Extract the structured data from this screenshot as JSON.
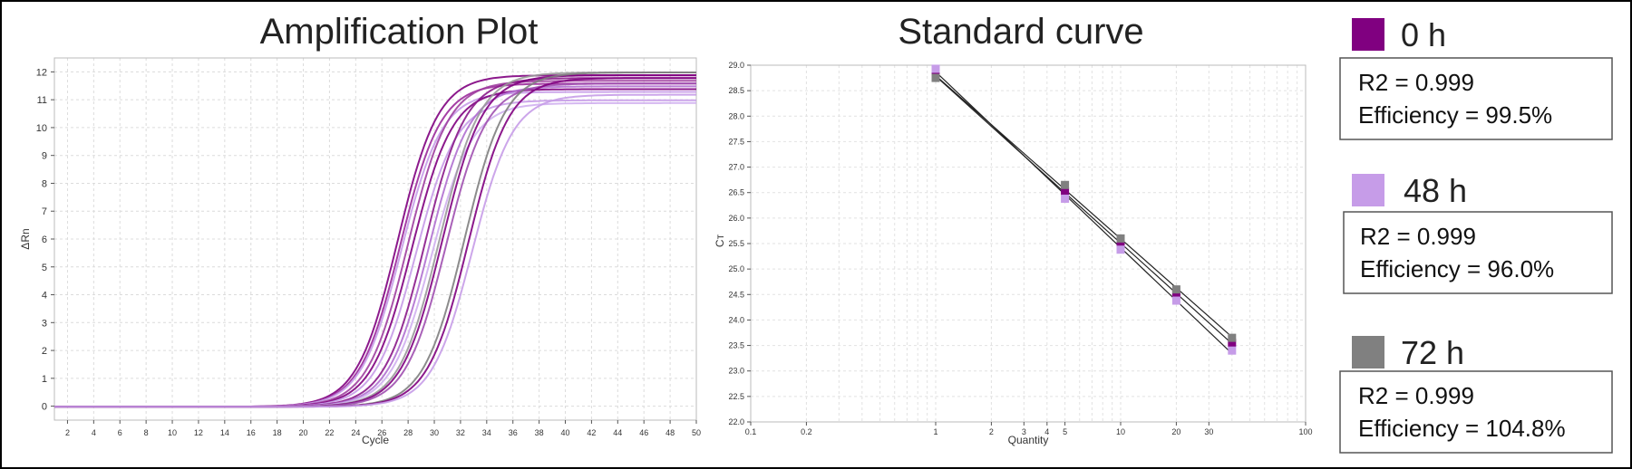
{
  "chart_data": [
    {
      "type": "line",
      "title": "Amplification Plot",
      "xlabel": "Cycle",
      "ylabel": "ΔRn",
      "xlim": [
        1,
        50
      ],
      "ylim": [
        -0.5,
        12.5
      ],
      "xticks": [
        2,
        4,
        6,
        8,
        10,
        12,
        14,
        16,
        18,
        20,
        22,
        24,
        26,
        28,
        30,
        32,
        34,
        36,
        38,
        40,
        42,
        44,
        46,
        48,
        50
      ],
      "yticks": [
        0,
        1,
        2,
        3,
        4,
        5,
        6,
        7,
        8,
        9,
        10,
        11,
        12
      ],
      "grid": true,
      "series": [
        {
          "color": "#800080",
          "midpoint": 27.2,
          "plateau": 11.9
        },
        {
          "color": "#9b2a9b",
          "midpoint": 27.4,
          "plateau": 11.6
        },
        {
          "color": "#c69ce8",
          "midpoint": 27.5,
          "plateau": 11.3
        },
        {
          "color": "#a040a0",
          "midpoint": 28.0,
          "plateau": 11.7
        },
        {
          "color": "#800080",
          "midpoint": 28.3,
          "plateau": 11.4
        },
        {
          "color": "#c69ce8",
          "midpoint": 28.6,
          "plateau": 11.0
        },
        {
          "color": "#8a1a8a",
          "midpoint": 29.3,
          "plateau": 11.8
        },
        {
          "color": "#b070d0",
          "midpoint": 29.6,
          "plateau": 11.5
        },
        {
          "color": "#d0b0f0",
          "midpoint": 29.8,
          "plateau": 10.9
        },
        {
          "color": "#9a9a9a",
          "midpoint": 30.4,
          "plateau": 12.0
        },
        {
          "color": "#800080",
          "midpoint": 30.6,
          "plateau": 11.9
        },
        {
          "color": "#a050b0",
          "midpoint": 30.9,
          "plateau": 11.6
        },
        {
          "color": "#808080",
          "midpoint": 32.3,
          "plateau": 12.0
        },
        {
          "color": "#800080",
          "midpoint": 32.6,
          "plateau": 11.8
        },
        {
          "color": "#c69ce8",
          "midpoint": 32.9,
          "plateau": 11.2
        }
      ]
    },
    {
      "type": "scatter",
      "title": "Standard curve",
      "xlabel": "Quantity",
      "ylabel": "Cт",
      "xscale": "log",
      "xlim": [
        0.1,
        100
      ],
      "ylim": [
        22.0,
        29.0
      ],
      "xticks": [
        0.1,
        0.2,
        1,
        2,
        3,
        4,
        5,
        10,
        20,
        30,
        100
      ],
      "xticklabels": [
        "0.1",
        "0.2",
        "1",
        "2",
        "3",
        "4",
        "5",
        "10",
        "20",
        "30",
        "100"
      ],
      "yticks": [
        22.0,
        22.5,
        23.0,
        23.5,
        24.0,
        24.5,
        25.0,
        25.5,
        26.0,
        26.5,
        27.0,
        27.5,
        28.0,
        28.5,
        29.0
      ],
      "yticklabels": [
        "22.0",
        "22.5",
        "23.0",
        "23.5",
        "24.0",
        "24.5",
        "25.0",
        "25.5",
        "26.0",
        "26.5",
        "27.0",
        "27.5",
        "28.0",
        "28.5",
        "29.0"
      ],
      "grid": true,
      "x": [
        1,
        5,
        10,
        20,
        40
      ],
      "series": [
        {
          "name": "0 h",
          "color": "#800080",
          "values": [
            28.78,
            26.52,
            25.5,
            24.5,
            23.55
          ]
        },
        {
          "name": "48 h",
          "color": "#c69ce8",
          "values": [
            28.93,
            26.38,
            25.38,
            24.38,
            23.4
          ]
        },
        {
          "name": "72 h",
          "color": "#808080",
          "values": [
            28.75,
            26.65,
            25.6,
            24.6,
            23.65
          ]
        }
      ]
    }
  ],
  "legend": [
    {
      "label": "0 h",
      "color": "#800080",
      "r2": "R2 = 0.999",
      "efficiency": "Efficiency = 99.5%"
    },
    {
      "label": "48 h",
      "color": "#c69ce8",
      "r2": "R2 = 0.999",
      "efficiency": "Efficiency = 96.0%"
    },
    {
      "label": "72 h",
      "color": "#808080",
      "r2": "R2 = 0.999",
      "efficiency": "Efficiency = 104.8%"
    }
  ]
}
